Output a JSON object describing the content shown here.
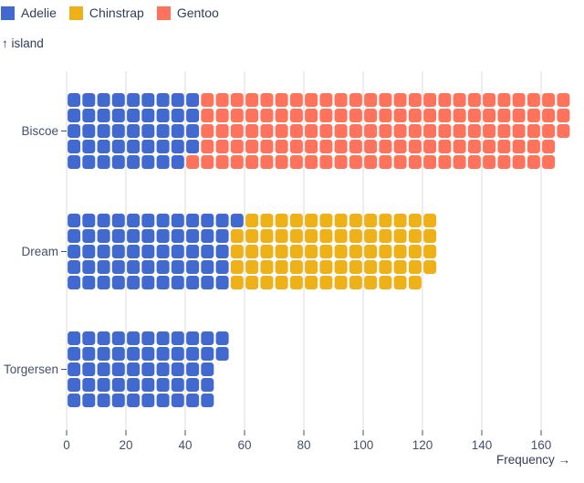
{
  "legend": {
    "items": [
      {
        "label": "Adelie",
        "color": "#4269d0"
      },
      {
        "label": "Chinstrap",
        "color": "#efb118"
      },
      {
        "label": "Gentoo",
        "color": "#ff725c"
      }
    ]
  },
  "y_axis_title": "↑ island",
  "x_axis_title": "Frequency →",
  "chart_data": {
    "type": "bar",
    "variant": "waffle-unit-chart",
    "title": "",
    "categories": [
      "Biscoe",
      "Dream",
      "Torgersen"
    ],
    "series": [
      {
        "name": "Adelie",
        "color": "#4269d0",
        "values": [
          44,
          56,
          52
        ]
      },
      {
        "name": "Chinstrap",
        "color": "#efb118",
        "values": [
          0,
          68,
          0
        ]
      },
      {
        "name": "Gentoo",
        "color": "#ff725c",
        "values": [
          124,
          0,
          0
        ]
      }
    ],
    "totals": [
      168,
      124,
      52
    ],
    "xlabel": "Frequency",
    "ylabel": "island",
    "xticks": [
      0,
      20,
      40,
      60,
      80,
      100,
      120,
      140,
      160
    ],
    "xlim": [
      0,
      170
    ],
    "unit_per_cell": 1,
    "rows_per_category": 5,
    "cell_fill_order": "column-major-left-to-right-top-to-bottom",
    "grid": true,
    "legend_position": "top-left"
  },
  "colors": {
    "text": "#2f3d57",
    "axis_text": "#44506a",
    "gridline": "#dcdcdc",
    "tick": "#44506a",
    "background": "#ffffff"
  }
}
